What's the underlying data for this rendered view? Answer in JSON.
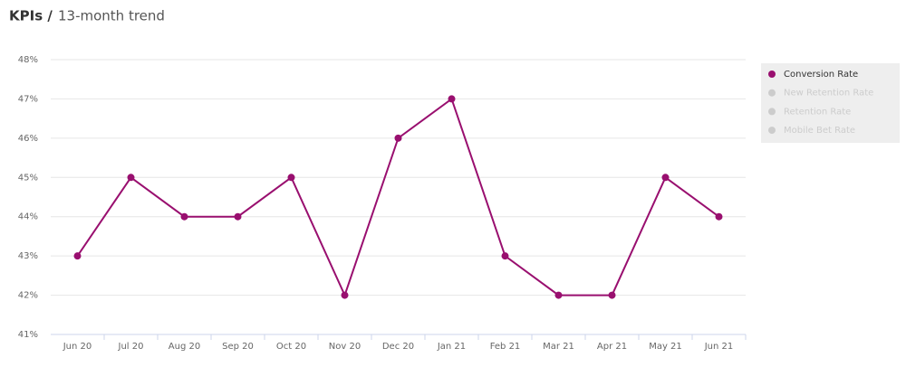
{
  "chart_data": {
    "type": "line",
    "title": "KPIs /",
    "subtitle": "13-month trend",
    "categories": [
      "Jun 20",
      "Jul 20",
      "Aug 20",
      "Sep 20",
      "Oct 20",
      "Nov 20",
      "Dec 20",
      "Jan 21",
      "Feb 21",
      "Mar 21",
      "Apr 21",
      "May 21",
      "Jun 21"
    ],
    "series": [
      {
        "name": "Conversion Rate",
        "color": "#990f6f",
        "visible": true,
        "values": [
          43,
          45,
          44,
          44,
          45,
          42,
          46,
          47,
          43,
          42,
          42,
          45,
          44
        ]
      },
      {
        "name": "New Retention Rate",
        "color": "#cccccc",
        "visible": false,
        "values": [
          null,
          null,
          null,
          null,
          null,
          null,
          null,
          null,
          null,
          null,
          null,
          null,
          null
        ]
      },
      {
        "name": "Retention Rate",
        "color": "#cccccc",
        "visible": false,
        "values": [
          null,
          null,
          null,
          null,
          null,
          null,
          null,
          null,
          null,
          null,
          null,
          null,
          null
        ]
      },
      {
        "name": "Mobile Bet Rate",
        "color": "#cccccc",
        "visible": false,
        "values": [
          null,
          null,
          null,
          null,
          null,
          null,
          null,
          null,
          null,
          null,
          null,
          null,
          null
        ]
      }
    ],
    "ylim": [
      41,
      48
    ],
    "yticks": [
      {
        "value": 41,
        "label": "41%"
      },
      {
        "value": 42,
        "label": "42%"
      },
      {
        "value": 43,
        "label": "43%"
      },
      {
        "value": 44,
        "label": "44%"
      },
      {
        "value": 45,
        "label": "45%"
      },
      {
        "value": 46,
        "label": "46%"
      },
      {
        "value": 47,
        "label": "47%"
      },
      {
        "value": 48,
        "label": "48%"
      }
    ],
    "grid": true,
    "legend": "right"
  }
}
